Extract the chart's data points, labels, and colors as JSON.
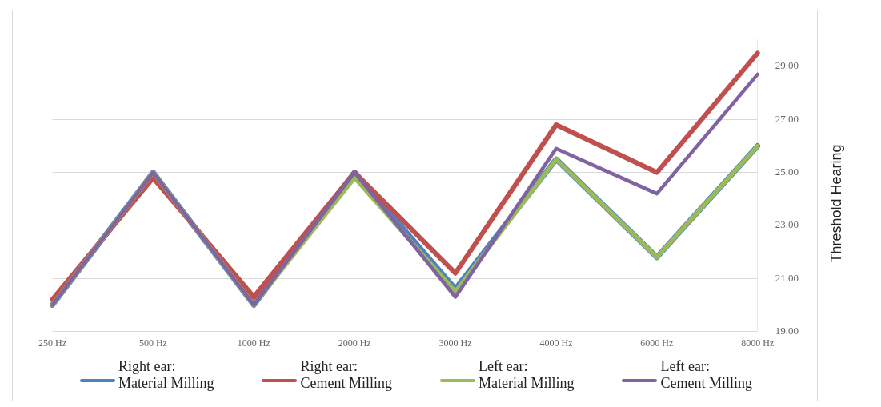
{
  "chart_data": {
    "type": "line",
    "ylabel": "Threshold Hearing",
    "categories": [
      "250 Hz",
      "500 Hz",
      "1000 Hz",
      "2000 Hz",
      "3000 Hz",
      "4000 Hz",
      "6000 Hz",
      "8000 Hz"
    ],
    "series": [
      {
        "name": "Right ear: Material Milling",
        "color": "#4f81bd",
        "values": [
          20.0,
          25.0,
          20.0,
          25.0,
          20.6,
          25.5,
          21.8,
          26.0
        ]
      },
      {
        "name": "Right ear: Cement Milling",
        "color": "#c0504d",
        "values": [
          20.2,
          24.8,
          20.3,
          25.0,
          21.2,
          26.8,
          25.0,
          29.5
        ]
      },
      {
        "name": "Left ear: Material Milling",
        "color": "#9bbb59",
        "values": [
          20.0,
          25.0,
          20.0,
          24.8,
          20.5,
          25.5,
          21.8,
          26.0
        ]
      },
      {
        "name": "Left ear: Cement Milling",
        "color": "#8064a2",
        "values": [
          20.0,
          25.0,
          20.0,
          25.0,
          20.3,
          25.9,
          24.2,
          28.7
        ]
      }
    ],
    "ylim": [
      19,
      30
    ],
    "yticks": [
      {
        "value": 19,
        "label": "19.00"
      },
      {
        "value": 21,
        "label": "21.00"
      },
      {
        "value": 23,
        "label": "23.00"
      },
      {
        "value": 25,
        "label": "25.00"
      },
      {
        "value": 27,
        "label": "27.00"
      },
      {
        "value": 29,
        "label": "29.00"
      }
    ],
    "grid": "y",
    "legend": "bottom",
    "marker": "none",
    "line_style": "solid"
  }
}
